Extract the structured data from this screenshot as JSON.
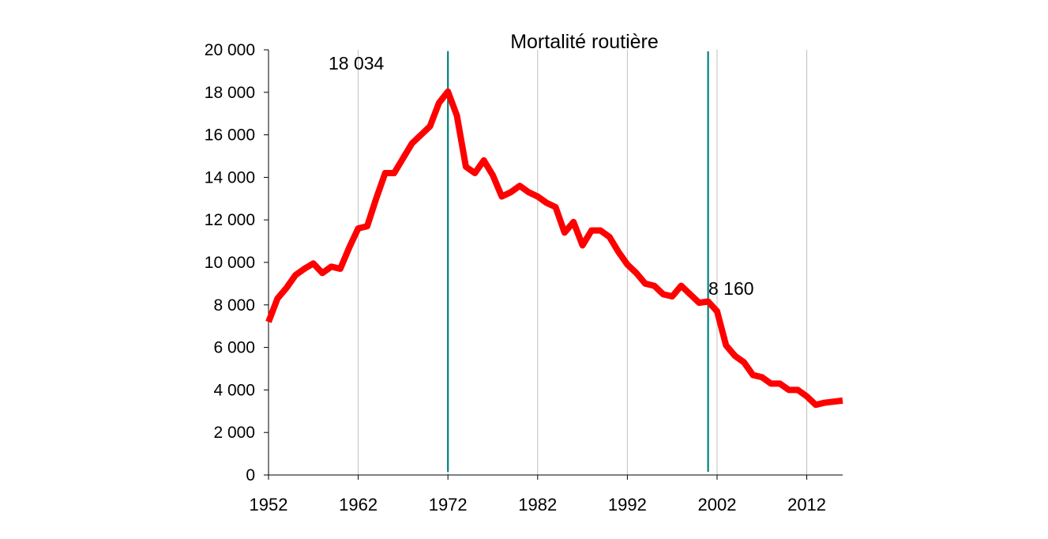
{
  "chart_data": {
    "type": "line",
    "title": "Mortalité routière",
    "xlabel": "",
    "ylabel": "",
    "xlim": [
      1952,
      2016
    ],
    "ylim": [
      0,
      20000
    ],
    "grid": {
      "vertical": true,
      "horizontal": false
    },
    "x_ticks": [
      "1952",
      "1962",
      "1972",
      "1982",
      "1992",
      "2002",
      "2012"
    ],
    "y_ticks": [
      "0",
      "2 000",
      "4 000",
      "6 000",
      "8 000",
      "10 000",
      "12 000",
      "14 000",
      "16 000",
      "18 000",
      "20 000"
    ],
    "series": [
      {
        "color": "#ff0000",
        "x": [
          1952,
          1953,
          1954,
          1955,
          1956,
          1957,
          1958,
          1959,
          1960,
          1961,
          1962,
          1963,
          1964,
          1965,
          1966,
          1967,
          1968,
          1969,
          1970,
          1971,
          1972,
          1973,
          1974,
          1975,
          1976,
          1977,
          1978,
          1979,
          1980,
          1981,
          1982,
          1983,
          1984,
          1985,
          1986,
          1987,
          1988,
          1989,
          1990,
          1991,
          1992,
          1993,
          1994,
          1995,
          1996,
          1997,
          1998,
          1999,
          2000,
          2001,
          2002,
          2003,
          2004,
          2005,
          2006,
          2007,
          2008,
          2009,
          2010,
          2011,
          2012,
          2013,
          2014,
          2015,
          2016
        ],
        "y": [
          7200,
          8300,
          8800,
          9400,
          9700,
          9950,
          9500,
          9800,
          9700,
          10700,
          11600,
          11700,
          13000,
          14200,
          14200,
          14900,
          15600,
          16000,
          16400,
          17500,
          18034,
          16900,
          14500,
          14200,
          14800,
          14100,
          13100,
          13300,
          13600,
          13300,
          13100,
          12800,
          12600,
          11400,
          11900,
          10800,
          11500,
          11500,
          11200,
          10500,
          9900,
          9500,
          9000,
          8900,
          8500,
          8400,
          8900,
          8500,
          8100,
          8160,
          7700,
          6100,
          5600,
          5300,
          4700,
          4600,
          4300,
          4300,
          4000,
          4000,
          3700,
          3300,
          3400,
          3450,
          3500
        ]
      }
    ],
    "reference_lines": [
      {
        "x": 1972,
        "color": "#008080"
      },
      {
        "x": 2001,
        "color": "#008080"
      }
    ],
    "annotations": [
      {
        "text": "18 034",
        "x": 1972,
        "y": 18034
      },
      {
        "text": "8 160",
        "x": 2001,
        "y": 8160
      }
    ]
  }
}
